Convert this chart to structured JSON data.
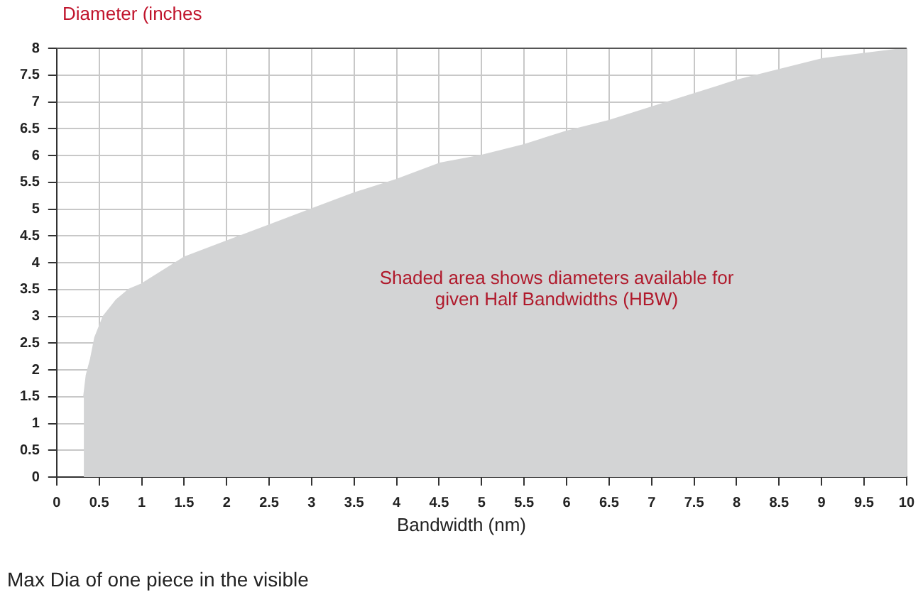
{
  "chart_data": {
    "type": "area",
    "ylabel": "Diameter (inches",
    "xlabel": "Bandwidth (nm)",
    "annotations": [
      "Shaded area shows diameters available for given Half Bandwidths (HBW)",
      "Max Dia of one piece in the visible"
    ],
    "series": [
      {
        "color": "#d3d4d5",
        "x": [
          0.32,
          0.35,
          0.4,
          0.45,
          0.55,
          0.7,
          0.85,
          1,
          1.5,
          2,
          2.5,
          3,
          3.5,
          4,
          4.5,
          5,
          5.5,
          6,
          6.5,
          7,
          7.5,
          8,
          8.5,
          9,
          9.5,
          10
        ],
        "values": [
          1.5,
          1.9,
          2.2,
          2.6,
          3.0,
          3.3,
          3.5,
          3.6,
          4.1,
          4.4,
          4.7,
          5.0,
          5.3,
          5.55,
          5.85,
          6.0,
          6.2,
          6.45,
          6.65,
          6.9,
          7.15,
          7.4,
          7.6,
          7.8,
          7.9,
          8.0
        ]
      }
    ],
    "xlim": [
      0,
      10
    ],
    "xticks": [
      0,
      0.5,
      1,
      1.5,
      2,
      2.5,
      3,
      3.5,
      4,
      4.5,
      5,
      5.5,
      6,
      6.5,
      7,
      7.5,
      8,
      8.5,
      9,
      9.5,
      10
    ],
    "ylim": [
      0,
      8
    ],
    "yticks": [
      0,
      0.5,
      1,
      1.5,
      2,
      2.5,
      3,
      3.5,
      4,
      4.5,
      5,
      5.5,
      6,
      6.5,
      7,
      7.5,
      8
    ],
    "grid": true,
    "legend": false,
    "marker": "none"
  }
}
